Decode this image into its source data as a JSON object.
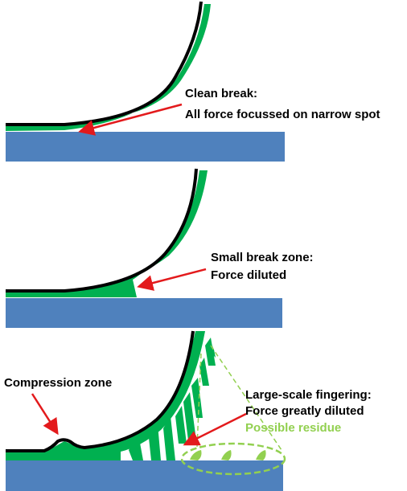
{
  "panel1": {
    "label_line1": "Clean break:",
    "label_line2": "All force focussed on narrow spot"
  },
  "panel2": {
    "label_line1": "Small break zone:",
    "label_line2": "Force diluted"
  },
  "panel3": {
    "compression_label": "Compression zone",
    "label_line1": "Large-scale fingering:",
    "label_line2": "Force greatly diluted",
    "residue_label": "Possible residue"
  },
  "colors": {
    "substrate": "#4f81bd",
    "tape_adhesive": "#00b050",
    "tape_backing": "#000000",
    "arrow": "#e31a1c",
    "residue": "#92d050"
  }
}
